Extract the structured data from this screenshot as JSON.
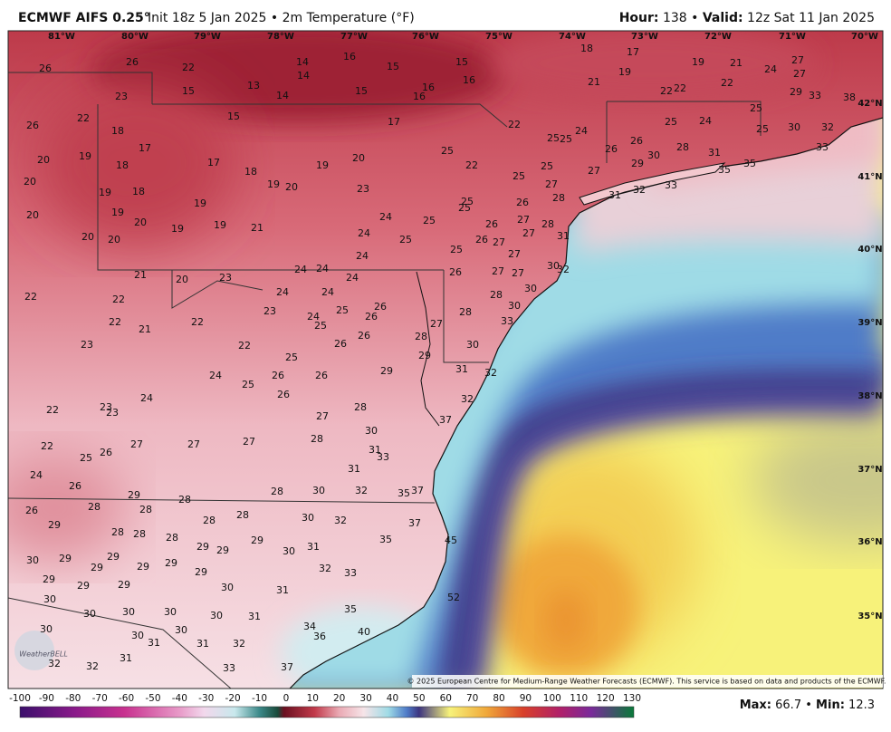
{
  "header": {
    "title": "ECMWF AIFS 0.25°",
    "subtitle": "Init 18z 5 Jan 2025 • 2m Temperature (°F)",
    "hour_label": "Hour:",
    "hour_value": "138",
    "separator": "•",
    "valid_label": "Valid:",
    "valid_value": "12z Sat 11 Jan 2025"
  },
  "map": {
    "longitude_labels": [
      "81°W",
      "80°W",
      "79°W",
      "78°W",
      "77°W",
      "76°W",
      "75°W",
      "74°W",
      "73°W",
      "72°W",
      "71°W",
      "70°W"
    ],
    "latitude_labels": [
      "42°N",
      "41°N",
      "40°N",
      "39°N",
      "38°N",
      "37°N",
      "36°N",
      "35°N"
    ],
    "temperature_labels": [
      26,
      26,
      22,
      23,
      15,
      13,
      14,
      14,
      14,
      16,
      15,
      15,
      16,
      16,
      15,
      16,
      18,
      17,
      19,
      21,
      19,
      21,
      24,
      27,
      27,
      29,
      33,
      38,
      22,
      22,
      22,
      25,
      25,
      24,
      22,
      26,
      18,
      17,
      15,
      17,
      22,
      25,
      25,
      24,
      26,
      26,
      28,
      31,
      25,
      30,
      32,
      33,
      35,
      35,
      33,
      32,
      31,
      30,
      29,
      27,
      20,
      19,
      18,
      17,
      18,
      19,
      20,
      25,
      22,
      20,
      19,
      18,
      19,
      20,
      23,
      25,
      25,
      27,
      26,
      28,
      19,
      19,
      20,
      20,
      19,
      19,
      21,
      24,
      25,
      25,
      25,
      26,
      27,
      28,
      31,
      20,
      20,
      24,
      25,
      26,
      27,
      27,
      27,
      24,
      25,
      30,
      32,
      24,
      24,
      26,
      27,
      27,
      21,
      20,
      23,
      24,
      24,
      24,
      22,
      22,
      30,
      28,
      23,
      24,
      25,
      26,
      26,
      28,
      30,
      33,
      22,
      21,
      22,
      25,
      26,
      27,
      28,
      23,
      22,
      26,
      29,
      30,
      25,
      29,
      31,
      32,
      24,
      26,
      26,
      25,
      26,
      32,
      24,
      22,
      23,
      23,
      28,
      37,
      27,
      30,
      28,
      22,
      25,
      26,
      27,
      27,
      27,
      31,
      33,
      31,
      24,
      26,
      29,
      28,
      28,
      30,
      32,
      35,
      37,
      26,
      28,
      28,
      28,
      28,
      30,
      32,
      37,
      29,
      28,
      28,
      28,
      29,
      29,
      29,
      30,
      31,
      35,
      45,
      30,
      29,
      29,
      29,
      29,
      29,
      29,
      32,
      33,
      29,
      29,
      29,
      30,
      31,
      52,
      30,
      30,
      30,
      30,
      30,
      31,
      35,
      30,
      30,
      34,
      36,
      40,
      30,
      31,
      31,
      32,
      31,
      32,
      32,
      33,
      37
    ],
    "copyright": "© 2025 European Centre for Medium-Range Weather Forecasts (ECMWF). This service is based on data and products of the ECMWF.",
    "logo": "WeatherBELL"
  },
  "colorbar": {
    "ticks": [
      -100,
      -90,
      -80,
      -70,
      -60,
      -50,
      -40,
      -30,
      -20,
      -10,
      0,
      10,
      20,
      30,
      40,
      50,
      60,
      70,
      80,
      90,
      100,
      110,
      120,
      130
    ]
  },
  "footer": {
    "max_label": "Max:",
    "max_value": "66.7",
    "separator": "•",
    "min_label": "Min:",
    "min_value": "12.3"
  }
}
